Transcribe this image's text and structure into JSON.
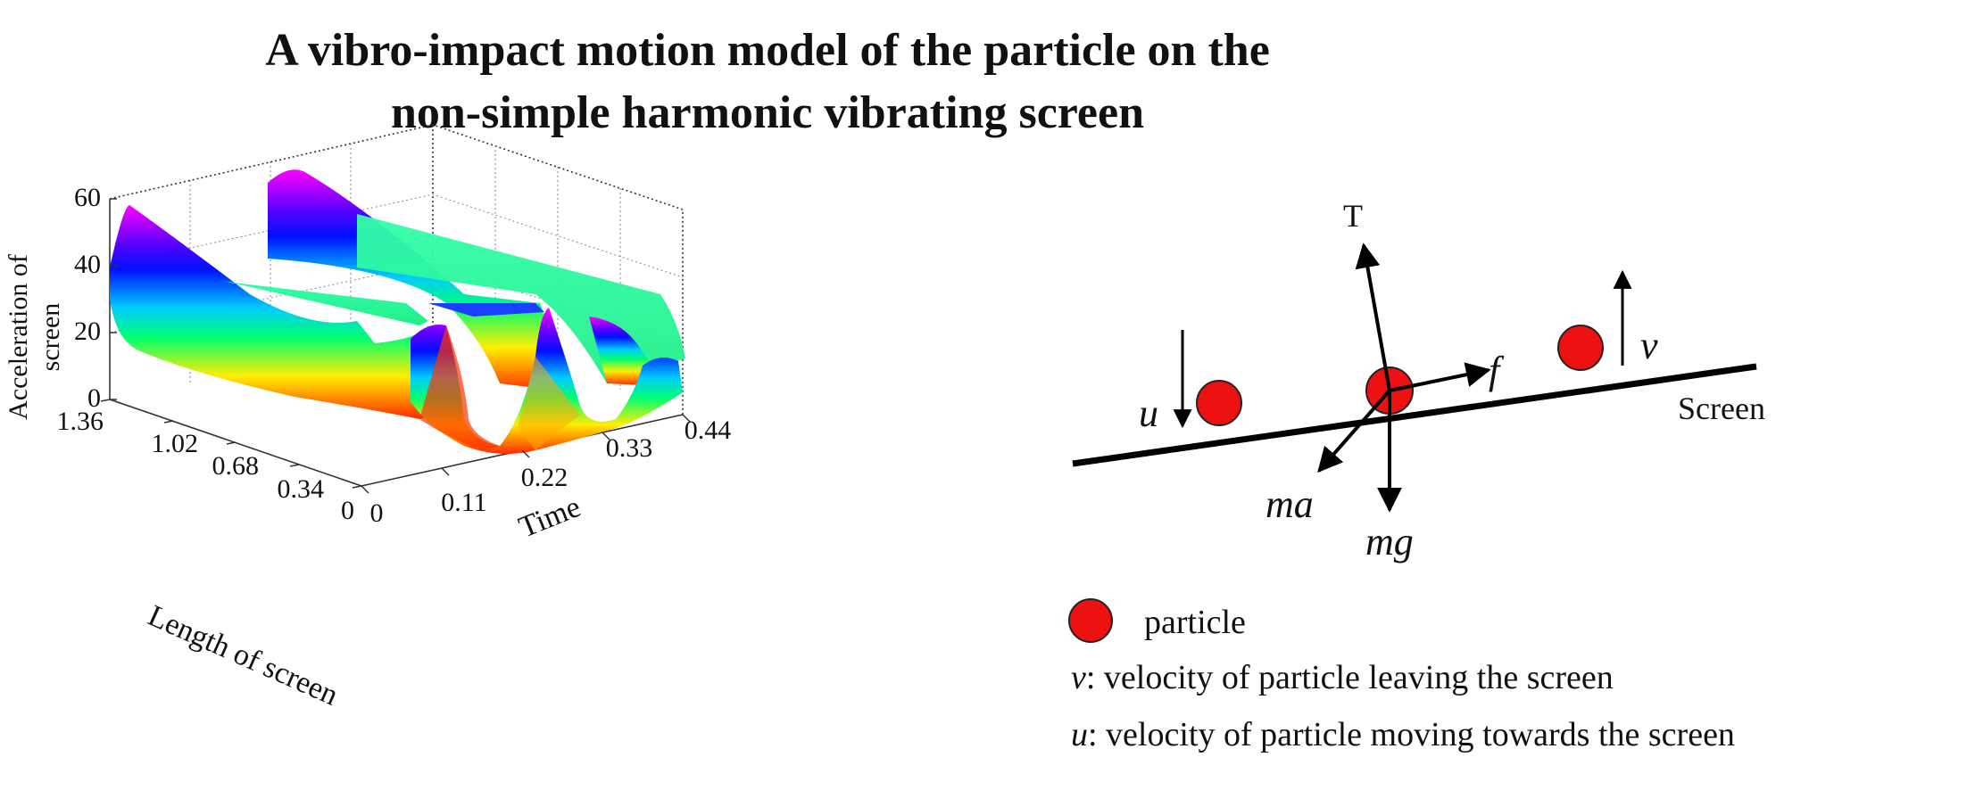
{
  "title": {
    "line1": "A vibro-impact motion model of the particle on the",
    "line2": "non-simple harmonic vibrating screen"
  },
  "plot3d": {
    "z_axis_label_line1": "Acceleration of",
    "z_axis_label_line2": "screen",
    "length_axis_label": "Length of screen",
    "time_axis_label": "Time",
    "z_ticks": [
      "0",
      "20",
      "40",
      "60"
    ],
    "length_ticks": [
      "0",
      "0.34",
      "0.68",
      "1.02",
      "1.36"
    ],
    "time_ticks": [
      "0",
      "0.11",
      "0.22",
      "0.33",
      "0.44"
    ],
    "zlim": [
      0,
      60
    ],
    "time_range": [
      0,
      0.44
    ],
    "length_range": [
      0,
      1.36
    ],
    "colormap": "hsv (red-yellow-green-cyan-blue-magenta)"
  },
  "force_diagram": {
    "T": "T",
    "f": "f",
    "v": "v",
    "u": "u",
    "ma": "ma",
    "mg": "mg",
    "screen": "Screen",
    "particle_color": "#ee1111"
  },
  "legend": {
    "particle": "particle",
    "v_symbol": "v",
    "v_text": ": velocity of particle leaving the screen",
    "u_symbol": "u",
    "u_text": ": velocity of particle moving towards the screen"
  }
}
